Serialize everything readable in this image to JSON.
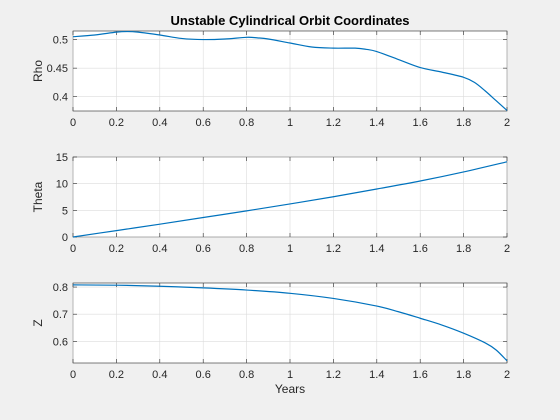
{
  "chart_data": [
    {
      "type": "line",
      "title": "Unstable Cylindrical Orbit Coordinates",
      "xlabel": "",
      "ylabel": "Rho",
      "xlim": [
        0,
        2
      ],
      "ylim": [
        0.375,
        0.515
      ],
      "xticks": [
        "0",
        "0.2",
        "0.4",
        "0.6",
        "0.8",
        "1",
        "1.2",
        "1.4",
        "1.6",
        "1.8",
        "2"
      ],
      "yticks": [
        "0.4",
        "0.45",
        "0.5"
      ],
      "grid": true,
      "color": "#0072bd",
      "series": [
        {
          "x": [
            0,
            0.1,
            0.2,
            0.25,
            0.3,
            0.4,
            0.5,
            0.6,
            0.7,
            0.8,
            0.85,
            0.9,
            1.0,
            1.1,
            1.2,
            1.3,
            1.35,
            1.4,
            1.5,
            1.6,
            1.7,
            1.8,
            1.85,
            1.9,
            1.95,
            2.0
          ],
          "y": [
            0.505,
            0.508,
            0.513,
            0.514,
            0.513,
            0.508,
            0.502,
            0.5,
            0.501,
            0.504,
            0.503,
            0.501,
            0.494,
            0.487,
            0.485,
            0.485,
            0.483,
            0.479,
            0.465,
            0.451,
            0.443,
            0.434,
            0.425,
            0.41,
            0.393,
            0.376
          ]
        }
      ]
    },
    {
      "type": "line",
      "title": "",
      "xlabel": "",
      "ylabel": "Theta",
      "xlim": [
        0,
        2
      ],
      "ylim": [
        0,
        15
      ],
      "xticks": [
        "0",
        "0.2",
        "0.4",
        "0.6",
        "0.8",
        "1",
        "1.2",
        "1.4",
        "1.6",
        "1.8",
        "2"
      ],
      "yticks": [
        "0",
        "5",
        "10",
        "15"
      ],
      "grid": true,
      "color": "#0072bd",
      "series": [
        {
          "x": [
            0,
            0.2,
            0.4,
            0.6,
            0.8,
            1.0,
            1.2,
            1.4,
            1.6,
            1.8,
            2.0
          ],
          "y": [
            0,
            1.2,
            2.4,
            3.65,
            4.9,
            6.2,
            7.55,
            9.0,
            10.5,
            12.2,
            14.1
          ]
        }
      ]
    },
    {
      "type": "line",
      "title": "",
      "xlabel": "Years",
      "ylabel": "Z",
      "xlim": [
        0,
        2
      ],
      "ylim": [
        0.52,
        0.815
      ],
      "xticks": [
        "0",
        "0.2",
        "0.4",
        "0.6",
        "0.8",
        "1",
        "1.2",
        "1.4",
        "1.6",
        "1.8",
        "2"
      ],
      "yticks": [
        "0.6",
        "0.7",
        "0.8"
      ],
      "grid": true,
      "color": "#0072bd",
      "series": [
        {
          "x": [
            0,
            0.2,
            0.4,
            0.6,
            0.8,
            1.0,
            1.2,
            1.4,
            1.5,
            1.6,
            1.7,
            1.8,
            1.9,
            1.95,
            2.0
          ],
          "y": [
            0.808,
            0.807,
            0.803,
            0.797,
            0.789,
            0.777,
            0.758,
            0.73,
            0.709,
            0.685,
            0.66,
            0.63,
            0.594,
            0.568,
            0.528
          ]
        }
      ]
    }
  ]
}
